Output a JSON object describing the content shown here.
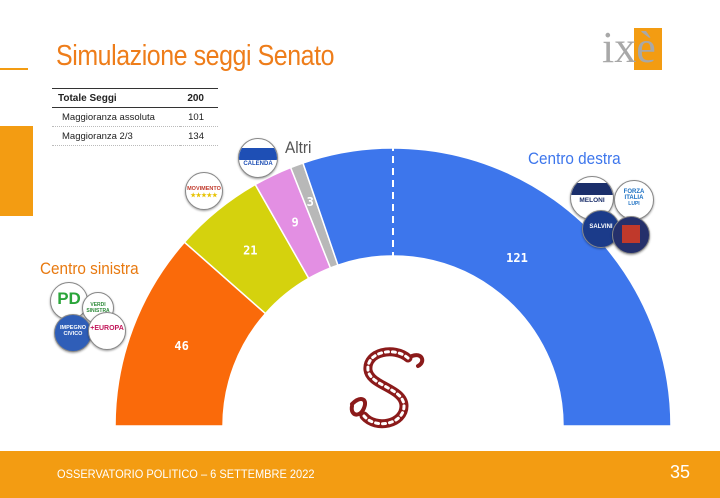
{
  "title": "Simulazione seggi Senato",
  "logo_text": "ixè",
  "summary_table": {
    "header": {
      "label": "Totale Seggi",
      "value": "200"
    },
    "rows": [
      {
        "label": "Maggioranza assoluta",
        "value": "101"
      },
      {
        "label": "Maggioranza 2/3",
        "value": "134"
      }
    ]
  },
  "groups": {
    "centro_sinistra": "Centro sinistra",
    "centro_destra": "Centro destra",
    "altri": "Altri"
  },
  "badges": {
    "calenda": "CALENDA",
    "movimento": "MOVIMENTO",
    "pd": "PD",
    "impegno_civico": "IMPEGNO CIVICO",
    "europa": "+EUROPA",
    "verdi": "VERDI SINISTRA",
    "meloni": "MELONI",
    "forza_italia": "FORZA ITALIA",
    "salvini": "SALVINI",
    "lupi": "LUPI"
  },
  "footer": {
    "text": "OSSERVATORIO POLITICO – 6 SETTEMBRE 2022",
    "page": "35"
  },
  "chart_data": {
    "type": "pie",
    "subtype": "parliament-semicircle",
    "total": 200,
    "majority": 101,
    "majority_line": true,
    "slices": [
      {
        "label": "46",
        "value": 46,
        "color": "#fa6a0a"
      },
      {
        "label": "21",
        "value": 21,
        "color": "#d5d20d"
      },
      {
        "label": "9",
        "value": 9,
        "color": "#e38fe3"
      },
      {
        "label": "3",
        "value": 3,
        "color": "#b8b8b8"
      },
      {
        "label": "121",
        "value": 121,
        "color": "#3d76ec"
      }
    ]
  },
  "colors": {
    "accent": "#f39c12",
    "title": "#ee7d1a",
    "centro_destra_label": "#3d76ec",
    "centro_sinistra_label": "#e8790f",
    "emblem": "#8b1a1a"
  }
}
